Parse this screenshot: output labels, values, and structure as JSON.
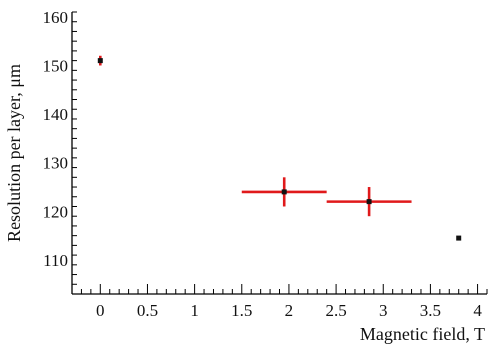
{
  "chart_data": {
    "type": "scatter",
    "title": "",
    "xlabel": "Magnetic field, T",
    "ylabel": "Resolution per layer, μm",
    "xlim": [
      -0.3,
      4.1
    ],
    "ylim": [
      103,
      161
    ],
    "x_ticks": [
      0,
      0.5,
      1,
      1.5,
      2,
      2.5,
      3,
      3.5,
      4
    ],
    "x_tick_labels": [
      "0",
      "0.5",
      "1",
      "1.5",
      "2",
      "2.5",
      "3",
      "3.5",
      "4"
    ],
    "y_ticks": [
      110,
      120,
      130,
      140,
      150,
      160
    ],
    "y_tick_labels": [
      "110",
      "120",
      "130",
      "140",
      "150",
      "160"
    ],
    "grid": false,
    "error_bar_color": "#e0191b",
    "marker_color": "#111111",
    "points": [
      {
        "x": 0.0,
        "y": 151,
        "x_err": 0.0,
        "y_err": 1.0
      },
      {
        "x": 1.95,
        "y": 124,
        "x_err": 0.45,
        "y_err": 3.0
      },
      {
        "x": 2.85,
        "y": 122,
        "x_err": 0.45,
        "y_err": 3.0
      },
      {
        "x": 3.8,
        "y": 114.5,
        "x_err": 0.0,
        "y_err": 0.0
      }
    ]
  }
}
